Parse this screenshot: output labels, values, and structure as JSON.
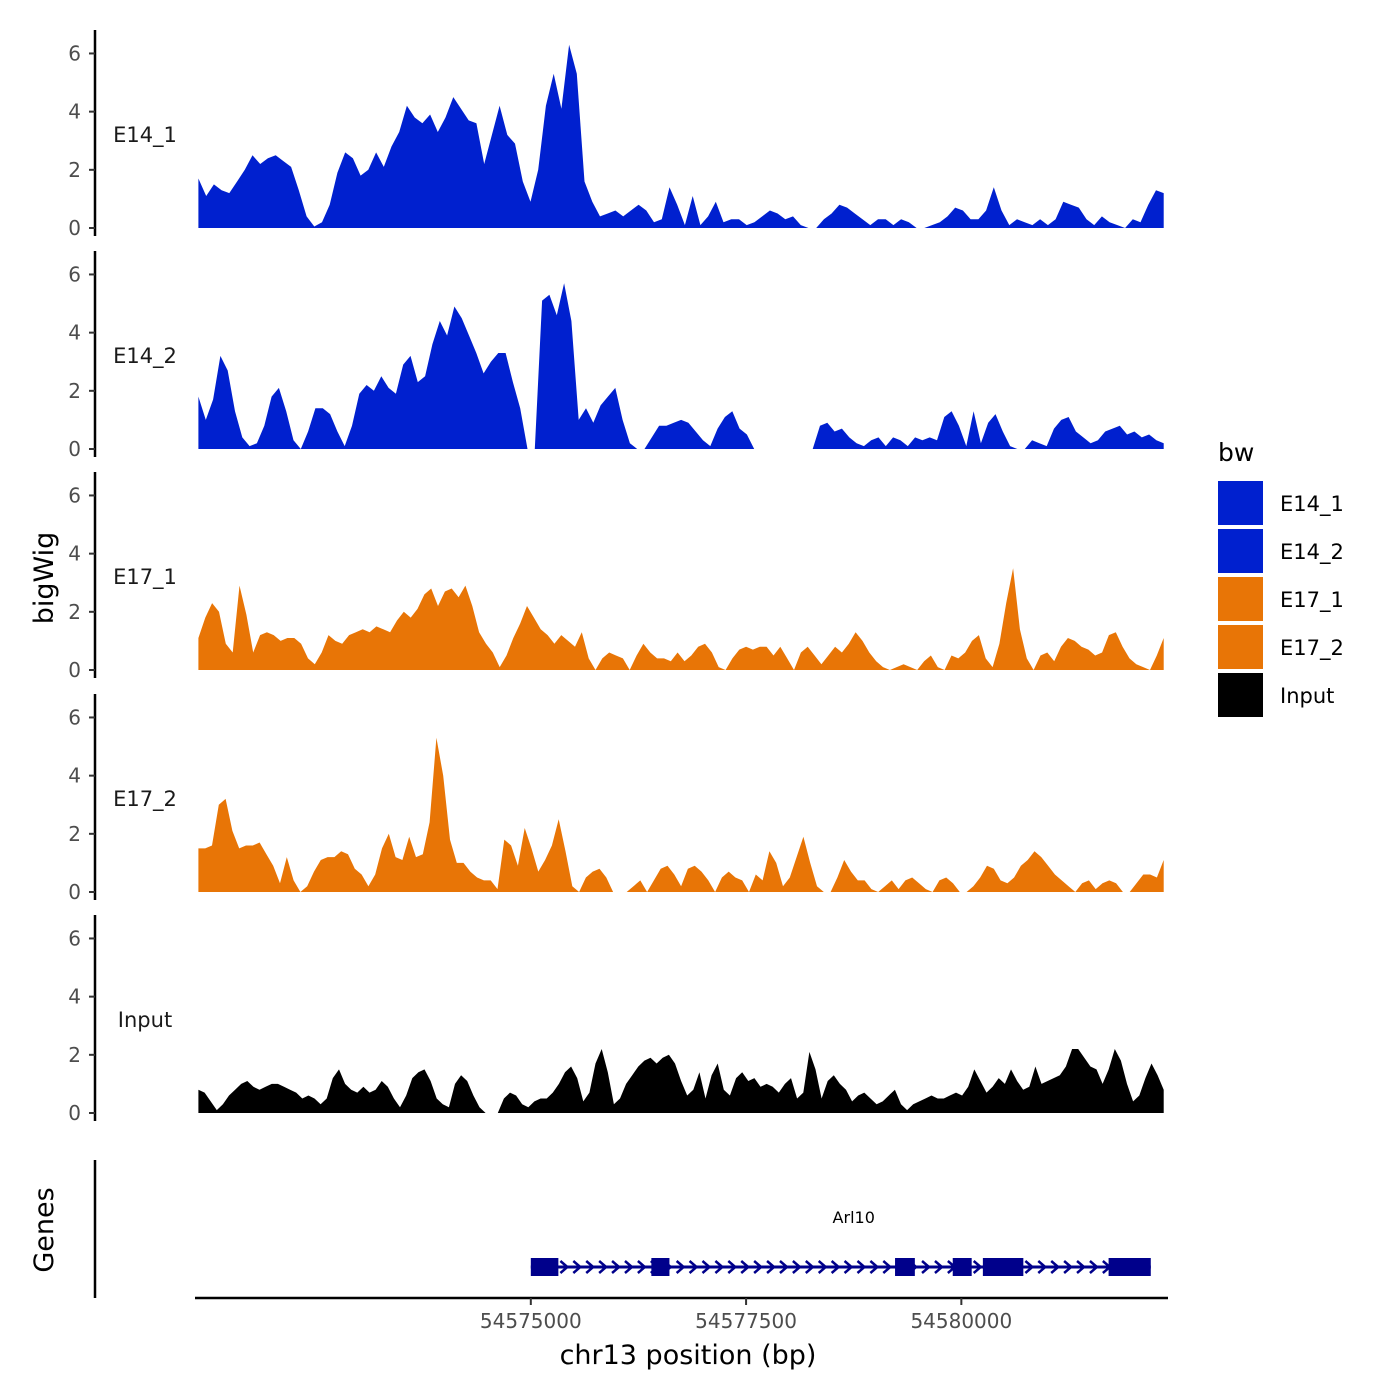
{
  "chart_data": {
    "type": "area",
    "xlabel": "chr13 position (bp)",
    "ylabel": "bigWig",
    "genes_label": "Genes",
    "xlim": [
      54571100,
      54582400
    ],
    "ylim": [
      0,
      6.6
    ],
    "y_ticks": [
      0,
      2,
      4,
      6
    ],
    "x_ticks": [
      54575000,
      54577500,
      54580000
    ],
    "x_tick_labels": [
      "54575000",
      "54577500",
      "54580000"
    ],
    "legend": {
      "title": "bw",
      "placement": "right",
      "entries": [
        {
          "label": "E14_1",
          "color": "#0020CF"
        },
        {
          "label": "E14_2",
          "color": "#0020CF"
        },
        {
          "label": "E17_1",
          "color": "#E87506"
        },
        {
          "label": "E17_2",
          "color": "#E87506"
        },
        {
          "label": "Input",
          "color": "#000000"
        }
      ]
    },
    "x_start": 54571140,
    "x_end": 54582350,
    "series": [
      {
        "name": "E14_1",
        "color": "#0020CF",
        "values": [
          1.7,
          1.1,
          1.5,
          1.3,
          1.2,
          1.6,
          2.0,
          2.5,
          2.2,
          2.4,
          2.5,
          2.3,
          2.1,
          1.3,
          0.4,
          0.05,
          0.2,
          0.8,
          1.9,
          2.6,
          2.4,
          1.8,
          2.0,
          2.6,
          2.1,
          2.8,
          3.3,
          4.2,
          3.8,
          3.6,
          3.9,
          3.3,
          3.8,
          4.5,
          4.1,
          3.7,
          3.6,
          2.2,
          3.2,
          4.2,
          3.2,
          2.9,
          1.6,
          0.9,
          2.0,
          4.2,
          5.3,
          4.1,
          6.3,
          5.3,
          1.6,
          0.9,
          0.4,
          0.5,
          0.6,
          0.4,
          0.6,
          0.8,
          0.6,
          0.2,
          0.3,
          1.4,
          0.8,
          0.1,
          1.1,
          0.1,
          0.4,
          0.9,
          0.2,
          0.3,
          0.3,
          0.1,
          0.2,
          0.4,
          0.6,
          0.5,
          0.3,
          0.4,
          0.1,
          0.0,
          0.0,
          0.3,
          0.5,
          0.8,
          0.7,
          0.5,
          0.3,
          0.1,
          0.3,
          0.3,
          0.1,
          0.3,
          0.2,
          0.0,
          0.0,
          0.1,
          0.2,
          0.4,
          0.7,
          0.6,
          0.3,
          0.3,
          0.6,
          1.4,
          0.6,
          0.1,
          0.3,
          0.2,
          0.1,
          0.3,
          0.1,
          0.3,
          0.9,
          0.8,
          0.7,
          0.3,
          0.1,
          0.4,
          0.2,
          0.1,
          0.0,
          0.3,
          0.2,
          0.8,
          1.3,
          1.2
        ]
      },
      {
        "name": "E14_2",
        "color": "#0020CF",
        "values": [
          1.8,
          1.0,
          1.7,
          3.2,
          2.7,
          1.3,
          0.4,
          0.1,
          0.2,
          0.8,
          1.8,
          2.1,
          1.3,
          0.3,
          0.0,
          0.6,
          1.4,
          1.4,
          1.2,
          0.6,
          0.1,
          0.8,
          1.9,
          2.2,
          2.0,
          2.5,
          2.1,
          1.9,
          2.9,
          3.2,
          2.3,
          2.5,
          3.6,
          4.4,
          3.9,
          4.9,
          4.5,
          3.9,
          3.3,
          2.6,
          3.0,
          3.3,
          3.3,
          2.3,
          1.4,
          0.0,
          0.0,
          5.1,
          5.3,
          4.6,
          5.7,
          4.4,
          1.0,
          1.4,
          0.9,
          1.5,
          1.8,
          2.1,
          1.0,
          0.2,
          0.0,
          0.0,
          0.4,
          0.8,
          0.8,
          0.9,
          1.0,
          0.9,
          0.6,
          0.3,
          0.1,
          0.7,
          1.1,
          1.3,
          0.7,
          0.5,
          0.0,
          0.0,
          0.0,
          0.0,
          0.0,
          0.0,
          0.0,
          0.0,
          0.0,
          0.8,
          0.9,
          0.6,
          0.7,
          0.4,
          0.2,
          0.1,
          0.3,
          0.4,
          0.1,
          0.4,
          0.3,
          0.1,
          0.4,
          0.3,
          0.4,
          0.3,
          1.1,
          1.3,
          0.8,
          0.1,
          1.3,
          0.2,
          0.9,
          1.2,
          0.6,
          0.1,
          0.0,
          0.0,
          0.3,
          0.2,
          0.1,
          0.7,
          1.0,
          1.1,
          0.6,
          0.4,
          0.2,
          0.3,
          0.6,
          0.7,
          0.8,
          0.5,
          0.6,
          0.4,
          0.5,
          0.3,
          0.2
        ]
      },
      {
        "name": "E17_1",
        "color": "#E87506",
        "values": [
          1.1,
          1.8,
          2.3,
          2.0,
          0.9,
          0.6,
          2.9,
          1.9,
          0.6,
          1.2,
          1.3,
          1.2,
          1.0,
          1.1,
          1.1,
          0.9,
          0.4,
          0.2,
          0.6,
          1.2,
          1.0,
          0.9,
          1.2,
          1.3,
          1.4,
          1.3,
          1.5,
          1.4,
          1.3,
          1.7,
          2.0,
          1.8,
          2.1,
          2.6,
          2.8,
          2.2,
          2.7,
          2.8,
          2.5,
          2.9,
          2.2,
          1.3,
          0.9,
          0.6,
          0.1,
          0.5,
          1.1,
          1.6,
          2.2,
          1.8,
          1.4,
          1.2,
          0.9,
          1.2,
          1.0,
          0.8,
          1.3,
          0.4,
          0.0,
          0.4,
          0.6,
          0.5,
          0.4,
          0.0,
          0.5,
          0.9,
          0.6,
          0.4,
          0.4,
          0.3,
          0.6,
          0.3,
          0.5,
          0.8,
          0.9,
          0.6,
          0.1,
          0.0,
          0.4,
          0.7,
          0.8,
          0.7,
          0.8,
          0.8,
          0.5,
          0.8,
          0.4,
          0.0,
          0.6,
          0.8,
          0.5,
          0.2,
          0.5,
          0.8,
          0.6,
          0.9,
          1.3,
          1.0,
          0.6,
          0.3,
          0.1,
          0.0,
          0.1,
          0.2,
          0.1,
          0.0,
          0.3,
          0.5,
          0.1,
          0.0,
          0.5,
          0.4,
          0.6,
          1.0,
          1.2,
          0.4,
          0.1,
          0.9,
          2.3,
          3.5,
          1.4,
          0.4,
          0.0,
          0.5,
          0.6,
          0.3,
          0.8,
          1.1,
          1.0,
          0.8,
          0.7,
          0.5,
          0.6,
          1.2,
          1.3,
          0.8,
          0.4,
          0.2,
          0.1,
          0.0,
          0.5,
          1.1
        ]
      },
      {
        "name": "E17_2",
        "color": "#E87506",
        "values": [
          1.5,
          1.5,
          1.6,
          3.0,
          3.2,
          2.1,
          1.5,
          1.6,
          1.6,
          1.7,
          1.3,
          0.9,
          0.3,
          1.2,
          0.4,
          0.0,
          0.2,
          0.7,
          1.1,
          1.2,
          1.2,
          1.4,
          1.3,
          0.8,
          0.6,
          0.2,
          0.6,
          1.5,
          2.0,
          1.2,
          1.1,
          1.9,
          1.2,
          1.3,
          2.4,
          5.3,
          4.0,
          1.8,
          1.0,
          1.0,
          0.7,
          0.5,
          0.4,
          0.4,
          0.1,
          1.8,
          1.6,
          0.9,
          2.2,
          1.5,
          0.7,
          1.1,
          1.6,
          2.5,
          1.4,
          0.2,
          0.0,
          0.5,
          0.7,
          0.8,
          0.5,
          0.0,
          0.0,
          0.0,
          0.2,
          0.4,
          0.0,
          0.4,
          0.8,
          0.9,
          0.6,
          0.2,
          0.8,
          0.9,
          0.7,
          0.4,
          0.0,
          0.5,
          0.7,
          0.5,
          0.4,
          0.0,
          0.6,
          0.4,
          1.4,
          1.0,
          0.2,
          0.5,
          1.2,
          1.9,
          1.0,
          0.2,
          0.0,
          0.0,
          0.5,
          1.1,
          0.7,
          0.4,
          0.4,
          0.1,
          0.0,
          0.2,
          0.4,
          0.1,
          0.4,
          0.5,
          0.3,
          0.1,
          0.0,
          0.4,
          0.5,
          0.3,
          0.0,
          0.0,
          0.2,
          0.5,
          0.9,
          0.8,
          0.4,
          0.3,
          0.5,
          0.9,
          1.1,
          1.4,
          1.2,
          0.9,
          0.6,
          0.4,
          0.2,
          0.0,
          0.3,
          0.4,
          0.1,
          0.3,
          0.4,
          0.3,
          0.0,
          0.0,
          0.3,
          0.6,
          0.6,
          0.5,
          1.1
        ]
      },
      {
        "name": "Input",
        "color": "#000000",
        "values": [
          0.8,
          0.7,
          0.4,
          0.1,
          0.3,
          0.6,
          0.8,
          1.0,
          1.1,
          0.9,
          0.8,
          0.9,
          1.0,
          1.0,
          0.9,
          0.8,
          0.7,
          0.5,
          0.6,
          0.5,
          0.3,
          0.5,
          1.2,
          1.5,
          1.0,
          0.8,
          0.7,
          0.9,
          0.7,
          0.8,
          1.1,
          0.9,
          0.5,
          0.2,
          0.6,
          1.2,
          1.4,
          1.5,
          1.1,
          0.5,
          0.3,
          0.2,
          1.0,
          1.3,
          1.1,
          0.6,
          0.2,
          0.0,
          0.0,
          0.0,
          0.5,
          0.7,
          0.6,
          0.3,
          0.2,
          0.4,
          0.5,
          0.5,
          0.7,
          1.0,
          1.4,
          1.6,
          1.2,
          0.4,
          0.7,
          1.7,
          2.2,
          1.4,
          0.3,
          0.5,
          1.0,
          1.3,
          1.6,
          1.8,
          1.9,
          1.7,
          1.9,
          2.0,
          1.7,
          1.1,
          0.6,
          0.8,
          1.4,
          0.5,
          1.3,
          1.7,
          0.8,
          0.6,
          1.2,
          1.4,
          1.1,
          1.2,
          0.9,
          1.0,
          0.9,
          0.7,
          1.0,
          1.2,
          0.5,
          0.7,
          2.1,
          1.5,
          0.5,
          1.1,
          1.3,
          1.0,
          0.8,
          0.4,
          0.6,
          0.7,
          0.5,
          0.3,
          0.4,
          0.6,
          0.8,
          0.3,
          0.1,
          0.3,
          0.4,
          0.5,
          0.6,
          0.5,
          0.5,
          0.6,
          0.7,
          0.6,
          0.9,
          1.5,
          1.1,
          0.7,
          0.9,
          1.2,
          1.0,
          1.5,
          1.1,
          0.8,
          0.9,
          1.6,
          1.0,
          1.1,
          1.2,
          1.3,
          1.6,
          2.2,
          2.2,
          1.9,
          1.6,
          1.5,
          1.0,
          1.5,
          2.2,
          1.8,
          1.0,
          0.4,
          0.6,
          1.2,
          1.7,
          1.3,
          0.8
        ]
      }
    ],
    "gene": {
      "name": "Arl10",
      "color": "#00008B",
      "start": 54575000,
      "end": 54582200,
      "exons": [
        [
          54575000,
          54575320
        ],
        [
          54576400,
          54576610
        ],
        [
          54579230,
          54579460
        ],
        [
          54579900,
          54580120
        ],
        [
          54580250,
          54580720
        ],
        [
          54581710,
          54582200
        ]
      ]
    }
  }
}
